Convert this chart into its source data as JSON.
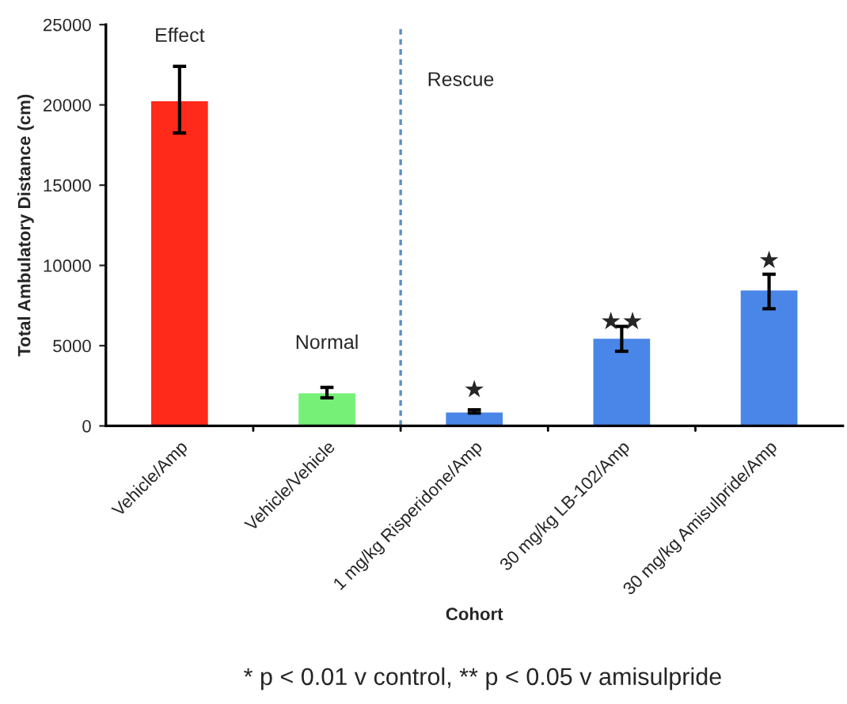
{
  "chart_data": {
    "type": "bar",
    "xlabel": "Cohort",
    "ylabel": "Total Ambulatory Distance (cm)",
    "categories": [
      "Vehicle/Amp",
      "Vehicle/Vehicle",
      "1 mg/kg Risperidone/Amp",
      "30 mg/kg LB-102/Amp",
      "30 mg/kg Amisulpride/Amp"
    ],
    "values": [
      20300,
      2100,
      900,
      5500,
      8500
    ],
    "colors": [
      "#ff2a1a",
      "#77f077",
      "#4a86e8",
      "#4a86e8",
      "#4a86e8"
    ],
    "errors": [
      [
        18250,
        22400
      ],
      [
        1750,
        2400
      ],
      [
        800,
        1000
      ],
      [
        4650,
        6200
      ],
      [
        7300,
        9450
      ]
    ],
    "ylim": [
      0,
      25000
    ],
    "yticks": [
      0,
      5000,
      10000,
      15000,
      20000,
      25000
    ],
    "annotations": [
      "Effect",
      "Normal",
      "Rescue",
      "★",
      "★★",
      "★",
      "* p < 0.01 v control, ** p < 0.05 v amisulpride"
    ]
  }
}
